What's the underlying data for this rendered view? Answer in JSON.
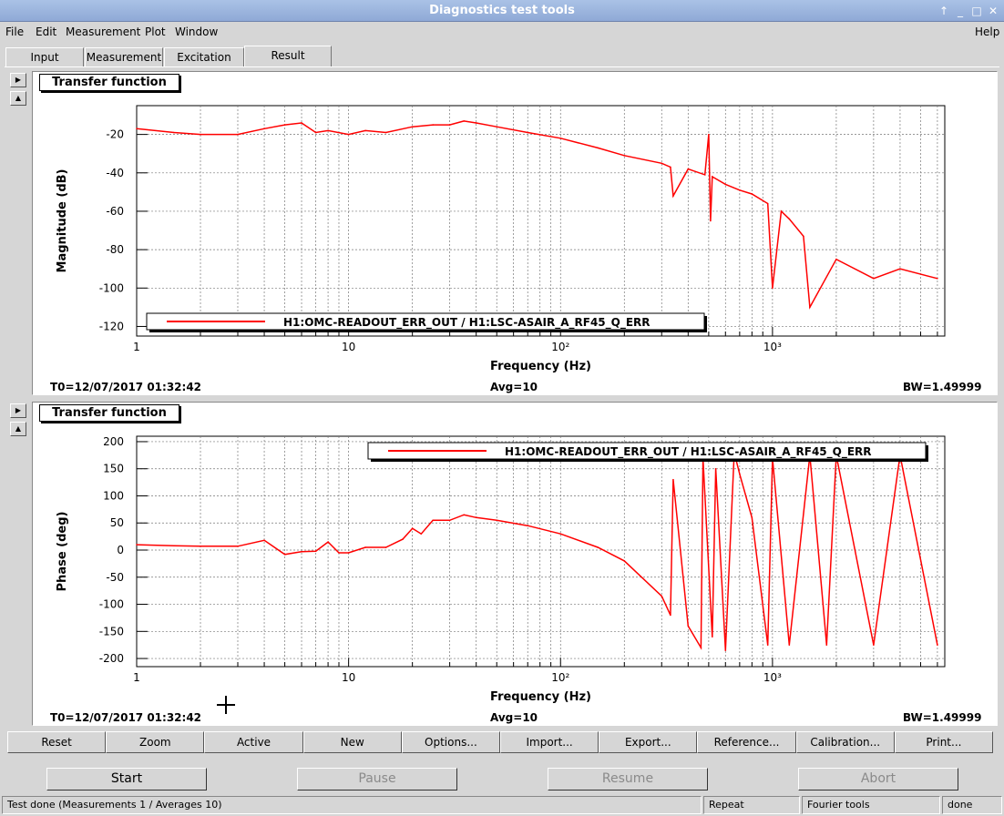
{
  "window": {
    "title": "Diagnostics test tools"
  },
  "menubar": {
    "items": [
      "File",
      "Edit",
      "Measurement",
      "Plot",
      "Window"
    ],
    "help": "Help"
  },
  "tabs": [
    "Input",
    "Measurement",
    "Excitation",
    "Result"
  ],
  "active_tab": "Result",
  "plots": [
    {
      "graph_title": "Transfer function",
      "t0": "T0=12/07/2017 01:32:42",
      "avg": "Avg=10",
      "bw": "BW=1.49999"
    },
    {
      "graph_title": "Transfer function",
      "t0": "T0=12/07/2017 01:32:42",
      "avg": "Avg=10",
      "bw": "BW=1.49999"
    }
  ],
  "chart_data": [
    {
      "type": "line",
      "xlabel": "Frequency (Hz)",
      "ylabel": "Magnitude (dB)",
      "xscale": "log",
      "xlim": [
        1,
        6500
      ],
      "ylim": [
        -125,
        -5
      ],
      "yticks": [
        -20,
        -40,
        -60,
        -80,
        -100,
        -120
      ],
      "xticklabels": [
        "1",
        "10",
        "10²",
        "10³"
      ],
      "grid": true,
      "legend": "bottom-left",
      "series": [
        {
          "name": "H1:OMC-READOUT_ERR_OUT / H1:LSC-ASAIR_A_RF45_Q_ERR",
          "color": "#ff0000",
          "x": [
            1,
            1.5,
            2,
            3,
            4,
            5,
            6,
            7,
            8,
            10,
            12,
            15,
            20,
            25,
            30,
            35,
            40,
            50,
            70,
            100,
            150,
            200,
            300,
            330,
            340,
            400,
            480,
            500,
            510,
            520,
            600,
            700,
            800,
            950,
            1000,
            1100,
            1200,
            1400,
            1500,
            2000,
            3000,
            4000,
            6000
          ],
          "y": [
            -17,
            -19,
            -20,
            -20,
            -17,
            -15,
            -14,
            -19,
            -18,
            -20,
            -18,
            -19,
            -16,
            -15,
            -15,
            -13,
            -14,
            -16,
            -19,
            -22,
            -27,
            -31,
            -35,
            -37,
            -52,
            -38,
            -41,
            -20,
            -65,
            -42,
            -46,
            -49,
            -51,
            -56,
            -100,
            -60,
            -64,
            -73,
            -110,
            -85,
            -95,
            -90,
            -95
          ]
        }
      ]
    },
    {
      "type": "line",
      "xlabel": "Frequency (Hz)",
      "ylabel": "Phase (deg)",
      "xscale": "log",
      "xlim": [
        1,
        6500
      ],
      "ylim": [
        -215,
        210
      ],
      "yticks": [
        200,
        150,
        100,
        50,
        0,
        -50,
        -100,
        -150,
        -200
      ],
      "xticklabels": [
        "1",
        "10",
        "10²",
        "10³"
      ],
      "grid": true,
      "legend": "top-right",
      "series": [
        {
          "name": "H1:OMC-READOUT_ERR_OUT / H1:LSC-ASAIR_A_RF45_Q_ERR",
          "color": "#ff0000",
          "x": [
            1,
            1.5,
            2,
            3,
            4,
            5,
            6,
            7,
            8,
            9,
            10,
            12,
            15,
            18,
            20,
            22,
            25,
            30,
            35,
            40,
            50,
            70,
            100,
            150,
            200,
            300,
            330,
            340,
            400,
            460,
            470,
            520,
            540,
            600,
            660,
            700,
            800,
            950,
            1000,
            1200,
            1500,
            1800,
            2000,
            3000,
            4000,
            6000
          ],
          "y": [
            10,
            8,
            7,
            7,
            18,
            -8,
            -3,
            -2,
            15,
            -5,
            -5,
            5,
            5,
            20,
            40,
            30,
            55,
            55,
            65,
            60,
            55,
            45,
            30,
            5,
            -20,
            -85,
            -120,
            130,
            -140,
            -180,
            170,
            -160,
            150,
            -185,
            180,
            140,
            60,
            -175,
            170,
            -175,
            175,
            -175,
            175,
            -175,
            175,
            -175
          ]
        }
      ]
    }
  ],
  "toolbar": [
    "Reset",
    "Zoom",
    "Active",
    "New",
    "Options...",
    "Import...",
    "Export...",
    "Reference...",
    "Calibration...",
    "Print..."
  ],
  "control": {
    "start": "Start",
    "pause": "Pause",
    "resume": "Resume",
    "abort": "Abort"
  },
  "status": {
    "main": "Test done (Measurements 1 / Averages 10)",
    "mode": "Repeat",
    "tool": "Fourier tools",
    "state": "done"
  }
}
